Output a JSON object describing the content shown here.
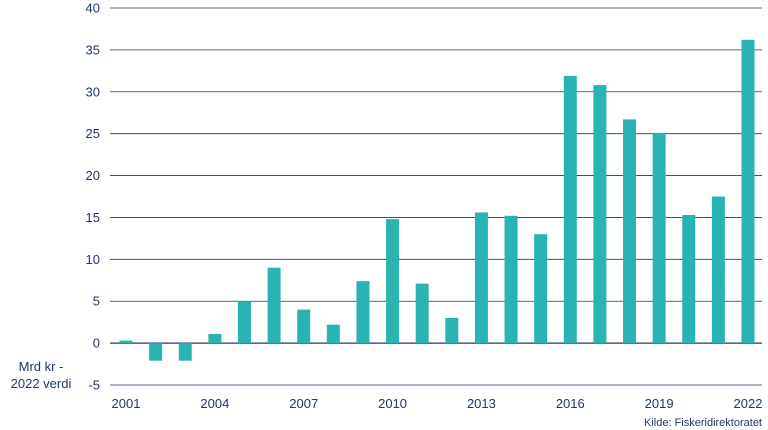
{
  "chart_data": {
    "type": "bar",
    "categories": [
      "2001",
      "2002",
      "2003",
      "2004",
      "2005",
      "2006",
      "2007",
      "2008",
      "2009",
      "2010",
      "2011",
      "2012",
      "2013",
      "2014",
      "2015",
      "2016",
      "2017",
      "2018",
      "2019",
      "2020",
      "2021",
      "2022"
    ],
    "values": [
      0.3,
      -2.1,
      -2.1,
      1.1,
      5.0,
      9.0,
      4.0,
      2.2,
      7.4,
      14.8,
      7.1,
      3.0,
      15.6,
      15.2,
      13.0,
      31.9,
      30.8,
      26.7,
      25.1,
      15.3,
      17.5,
      36.2
    ],
    "x_tick_labels": [
      "2001",
      "2004",
      "2007",
      "2010",
      "2013",
      "2016",
      "2019",
      "2022"
    ],
    "y_ticks": [
      -5,
      0,
      5,
      10,
      15,
      20,
      25,
      30,
      35,
      40
    ],
    "ylim": [
      -5,
      40
    ],
    "ylabel_lines": [
      "Mrd kr -",
      "2022 verdi"
    ],
    "source": "Kilde: Fiskeridirektoratet",
    "title": "",
    "xlabel": "",
    "grid": true,
    "colors": {
      "bar": "#2ab3b3",
      "grid": "#1f3864",
      "text": "#1f3864"
    }
  }
}
